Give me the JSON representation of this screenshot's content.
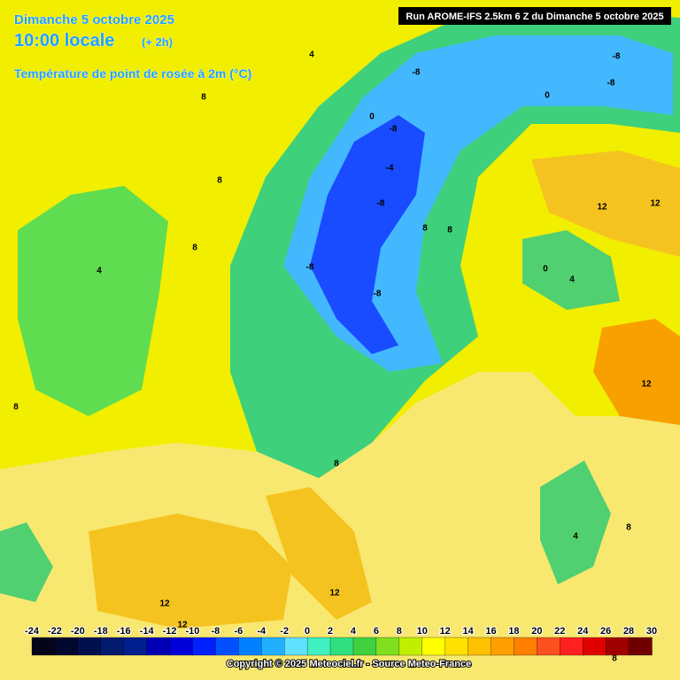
{
  "header": {
    "date": "Dimanche 5 octobre 2025",
    "time": "10:00 locale",
    "offset": "(+ 2h)",
    "field": "Température de point de rosée à 2m (°C)",
    "run": "Run AROME-IFS 2.5km 6 Z du Dimanche 5 octobre 2025"
  },
  "colorbar": {
    "labels": [
      -24,
      -22,
      -20,
      -18,
      -16,
      -14,
      -12,
      -10,
      -8,
      -6,
      -4,
      -2,
      0,
      2,
      4,
      6,
      8,
      10,
      12,
      14,
      16,
      18,
      20,
      22,
      24,
      26,
      28,
      30
    ],
    "colors": [
      "#05051a",
      "#000830",
      "#00104f",
      "#001a6e",
      "#00208f",
      "#0000b4",
      "#0000d8",
      "#0020ff",
      "#0050ff",
      "#0080ff",
      "#20b0ff",
      "#60e0ff",
      "#40f0c0",
      "#30e080",
      "#40d040",
      "#80e020",
      "#c0f000",
      "#ffff00",
      "#ffe000",
      "#ffc000",
      "#ffa000",
      "#ff8000",
      "#ff5020",
      "#ff2020",
      "#e00000",
      "#a00000",
      "#700000"
    ]
  },
  "contour_labels": [
    "4",
    "8",
    "8",
    "8",
    "8",
    "4",
    "8",
    "-8",
    "-8",
    "-4",
    "-8",
    "-8",
    "-8",
    "-8",
    "0",
    "0",
    "12",
    "12",
    "12",
    "0",
    "4",
    "12",
    "12",
    "12",
    "8",
    "4",
    "8",
    "8",
    "-8",
    "8"
  ],
  "footer": {
    "copyright": "Copyright © 2025 Meteociel.fr - Source Meteo-France"
  }
}
